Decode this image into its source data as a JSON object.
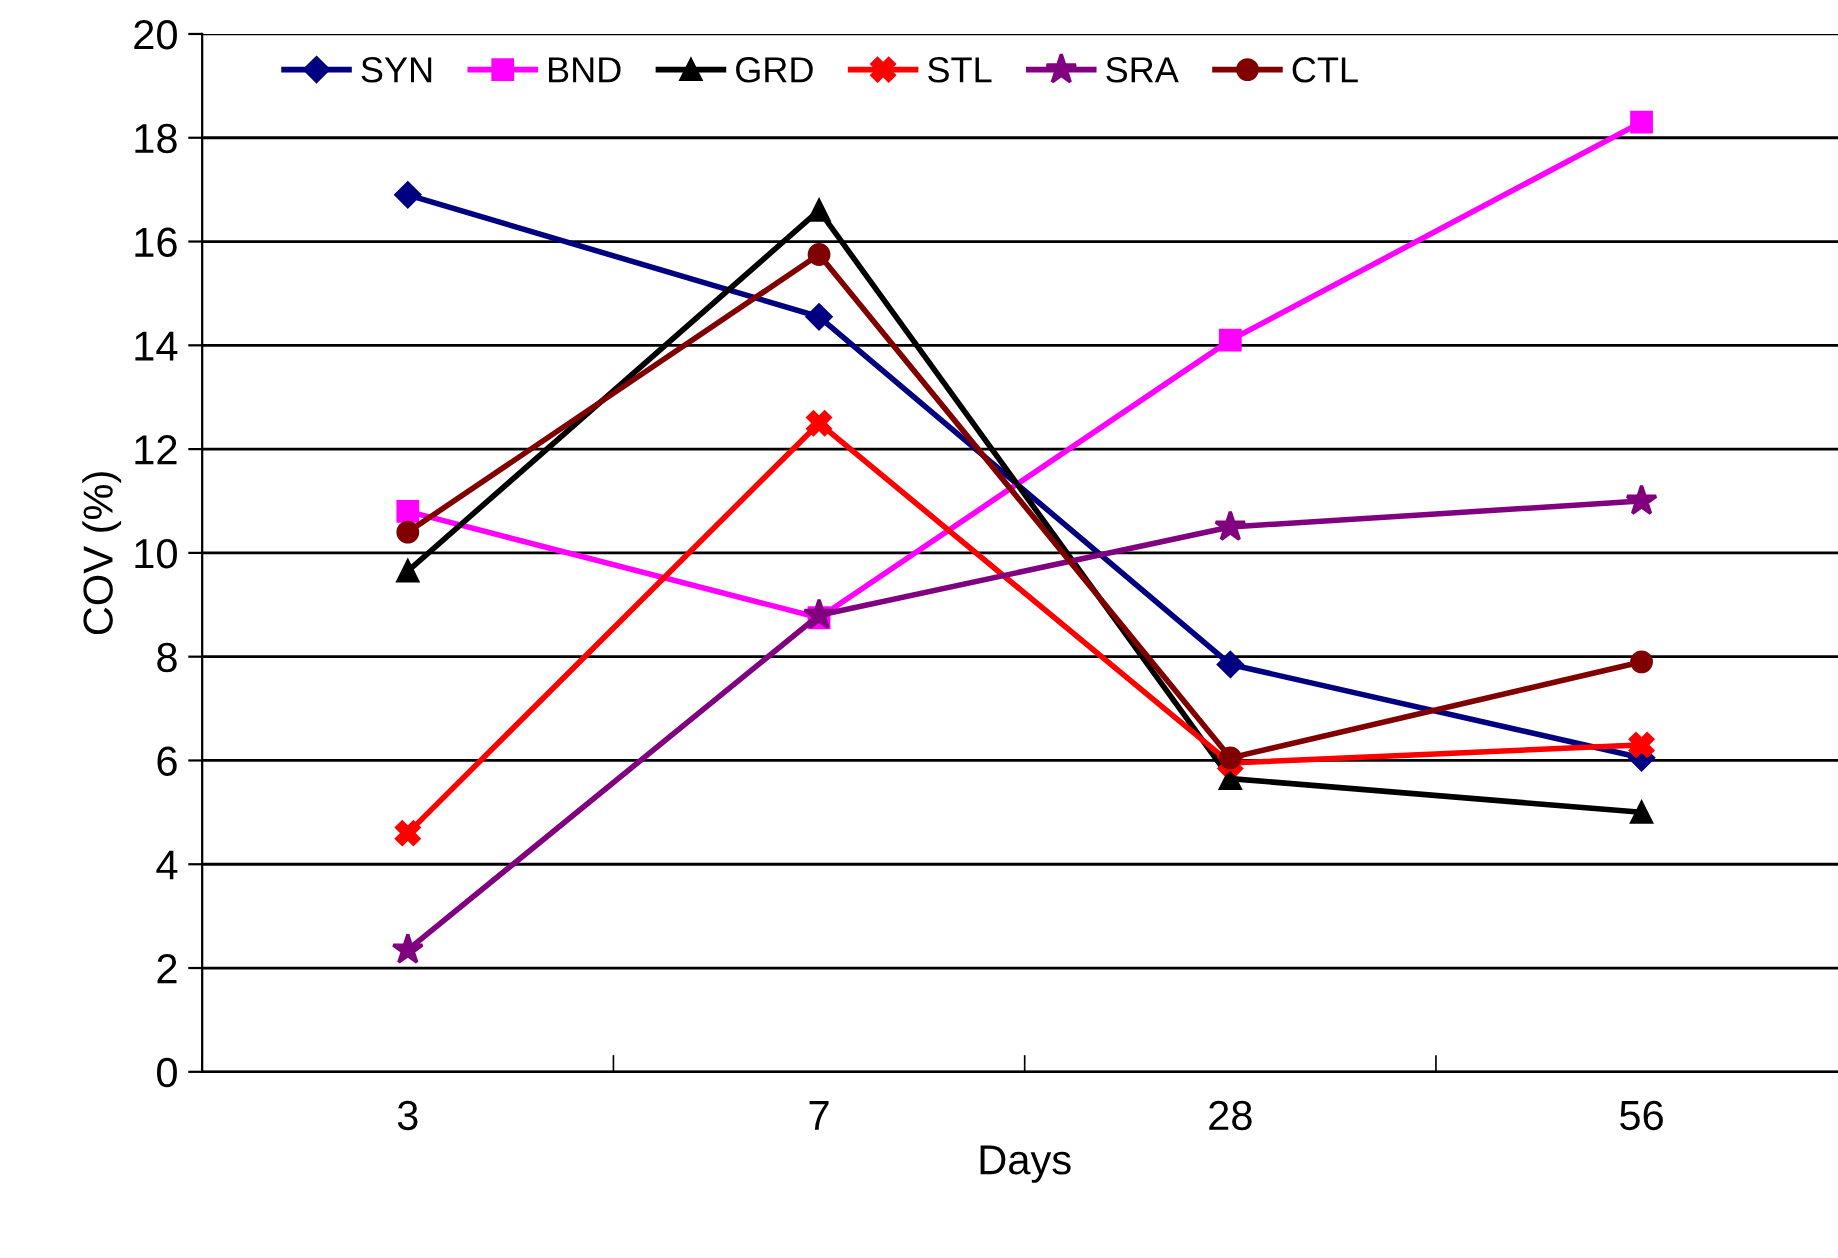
{
  "chart_data": {
    "type": "line",
    "xlabel": "Days",
    "ylabel": "COV (%)",
    "categories": [
      "3",
      "7",
      "28",
      "56"
    ],
    "series": [
      {
        "name": "SYN",
        "color": "#000080",
        "marker": "diamond",
        "values": [
          16.9,
          14.55,
          7.85,
          6.05
        ]
      },
      {
        "name": "BND",
        "color": "#ff00ff",
        "marker": "square",
        "values": [
          10.8,
          8.75,
          14.1,
          18.3
        ]
      },
      {
        "name": "GRD",
        "color": "#000000",
        "marker": "triangle",
        "values": [
          9.65,
          16.6,
          5.65,
          5.0
        ]
      },
      {
        "name": "STL",
        "color": "#ff0000",
        "marker": "cross",
        "values": [
          4.6,
          12.5,
          5.95,
          6.3
        ]
      },
      {
        "name": "SRA",
        "color": "#800080",
        "marker": "star",
        "values": [
          2.35,
          8.8,
          10.5,
          11.0
        ]
      },
      {
        "name": "CTL",
        "color": "#800000",
        "marker": "circle",
        "values": [
          10.4,
          15.75,
          6.05,
          7.9
        ]
      }
    ],
    "ylim": [
      0,
      20
    ],
    "yticks": [
      0,
      2,
      4,
      6,
      8,
      10,
      12,
      14,
      16,
      18,
      20
    ],
    "grid": "y",
    "legend": "top"
  }
}
